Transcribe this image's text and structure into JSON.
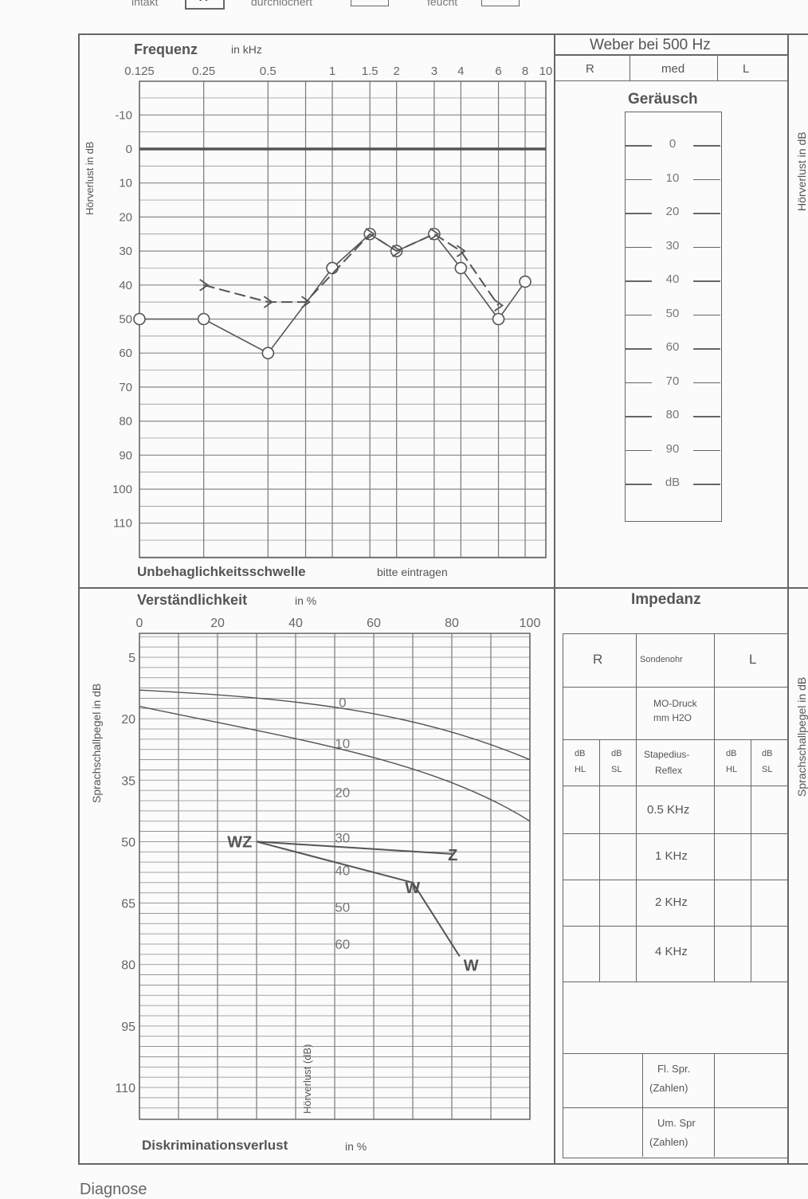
{
  "top_legend": {
    "intakt": "intakt",
    "intakt_mark": "X",
    "durchlochert": "durchlöchert",
    "feucht": "feucht"
  },
  "audiogram": {
    "title": "Frequenz",
    "unit": "in kHz",
    "y_label": "Hörverlust in dB",
    "freq_ticks": [
      "0.125",
      "0.25",
      "0.5",
      "1",
      "1.5",
      "2",
      "3",
      "4",
      "6",
      "8",
      "10"
    ],
    "db_ticks": [
      "-10",
      "0",
      "10",
      "20",
      "30",
      "40",
      "50",
      "60",
      "70",
      "80",
      "90",
      "100",
      "110"
    ],
    "footer_bold": "Unbehaglichkeitsschwelle",
    "footer_normal": "bitte eintragen",
    "series": [
      {
        "name": "air",
        "points": [
          [
            "0.125",
            50
          ],
          [
            "0.25",
            50
          ],
          [
            "0.5",
            60
          ],
          [
            "1",
            35
          ],
          [
            "1.5",
            25
          ],
          [
            "2",
            30
          ],
          [
            "3",
            25
          ],
          [
            "4",
            35
          ],
          [
            "6",
            50
          ],
          [
            "8",
            39
          ]
        ]
      },
      {
        "name": "bone",
        "points": [
          [
            "0.25",
            40
          ],
          [
            "0.5",
            45
          ],
          [
            "0.75",
            45
          ],
          [
            "1.5",
            25
          ],
          [
            "2",
            30
          ],
          [
            "3",
            25
          ],
          [
            "4",
            30
          ],
          [
            "6",
            46
          ]
        ]
      }
    ]
  },
  "weber": {
    "title": "Weber bei 500 Hz",
    "cols": [
      "R",
      "med",
      "L"
    ],
    "noise_title": "Geräusch",
    "noise_scale": [
      "0",
      "10",
      "20",
      "30",
      "40",
      "50",
      "60",
      "70",
      "80",
      "90",
      "dB"
    ]
  },
  "right_edge": {
    "top_label": "Hörverlust in dB",
    "bottom_label": "Sprachschallpegel in dB"
  },
  "speech": {
    "title": "Verständlichkeit",
    "unit": "in %",
    "y_label": "Sprachschallpegel in dB",
    "x_ticks": [
      "0",
      "20",
      "40",
      "60",
      "80",
      "100"
    ],
    "y_ticks": [
      "5",
      "20",
      "35",
      "50",
      "65",
      "80",
      "95",
      "110"
    ],
    "curve_labels": [
      "0",
      "10",
      "20",
      "30",
      "40",
      "50",
      "60"
    ],
    "inner_label": "Hörverlust (dB)",
    "marks": {
      "wz": "WZ",
      "z": "Z",
      "w1": "W",
      "w2": "W"
    },
    "footer_bold": "Diskriminationsverlust",
    "footer_normal": "in %"
  },
  "impedanz": {
    "title": "Impedanz",
    "r": "R",
    "sondenohr": "Sondenohr",
    "l": "L",
    "md_druck": "MO-Druck",
    "md_unit": "mm H2O",
    "db": "dB",
    "hl": "HL",
    "sl": "SL",
    "stapedius": "Stapedius-",
    "reflex": "Reflex",
    "freqs": [
      "0.5 KHz",
      "1 KHz",
      "2 KHz",
      "4 KHz"
    ],
    "fl_spr": "Fl. Spr.",
    "um_spr": "Um. Spr",
    "zahlen": "(Zahlen)"
  },
  "diagnose": "Diagnose"
}
